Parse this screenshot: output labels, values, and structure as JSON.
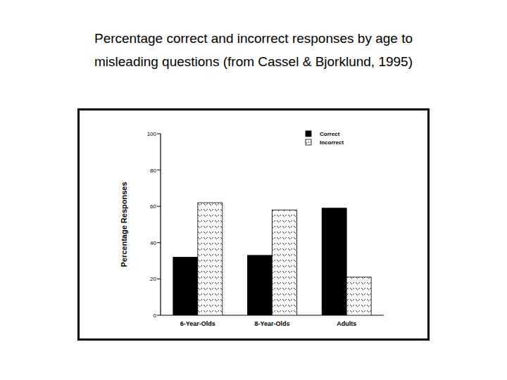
{
  "chart_data": {
    "type": "bar",
    "title": "Percentage correct and incorrect responses by age to misleading questions (from Cassel & Bjorklund, 1995)",
    "y_label": "Percentage Responses",
    "categories": [
      "6-Year-Olds",
      "8-Year-Olds",
      "Adults"
    ],
    "series": [
      {
        "name": "Correct",
        "color": "#000000",
        "values": [
          32,
          33,
          59
        ]
      },
      {
        "name": "Incorrect",
        "color": "#ffffff",
        "values": [
          62,
          58,
          21
        ]
      }
    ],
    "ylim": [
      0,
      100
    ],
    "yticks": [
      0,
      20,
      40,
      60,
      80,
      100
    ],
    "grid": false,
    "legend": "top-right"
  }
}
